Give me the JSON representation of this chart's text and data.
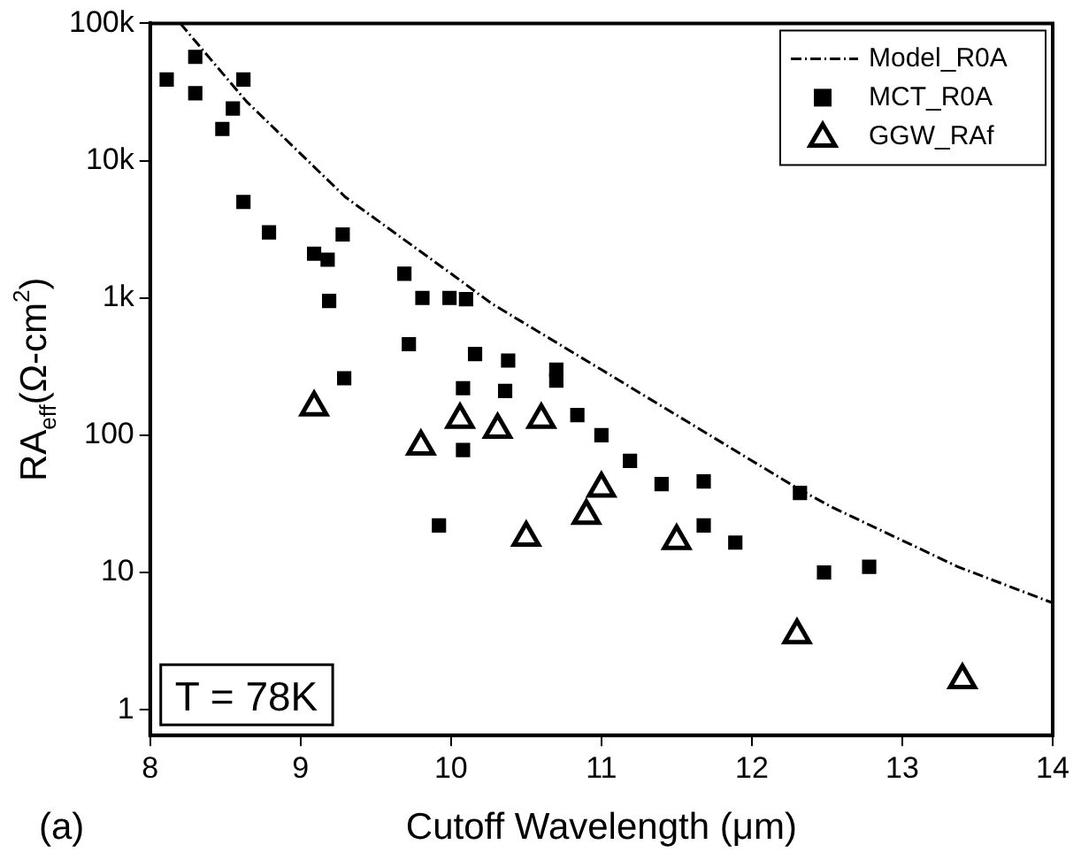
{
  "chart_data": {
    "type": "scatter",
    "xlabel": "Cutoff Wavelength (μm)",
    "ylabel": "RA$_{eff}$(Ω-cm$^{2}$)",
    "log": "y",
    "xlim": [
      8,
      14
    ],
    "xticks": [
      8,
      9,
      10,
      11,
      12,
      13,
      14
    ],
    "ylim": [
      0.65,
      100000
    ],
    "yticks": [
      {
        "value": 1,
        "label": "1"
      },
      {
        "value": 10,
        "label": "10"
      },
      {
        "value": 100,
        "label": "100"
      },
      {
        "value": 1000,
        "label": "1k"
      },
      {
        "value": 10000,
        "label": "10k"
      },
      {
        "value": 100000,
        "label": "100k"
      }
    ],
    "grid": false,
    "legend": "top right",
    "annotations": [
      "T = 78K",
      "(a)"
    ],
    "series": [
      {
        "name": "Model_R0A",
        "type": "line",
        "color": "#000000",
        "marker": "none",
        "line_style": "dashed",
        "x": [
          8.2,
          8.64,
          9.3,
          10.02,
          10.27,
          11.0,
          12.32,
          12.53,
          13.37,
          14.0
        ],
        "values": [
          100000,
          27000,
          5400,
          1450,
          910,
          300,
          40,
          30,
          11,
          6
        ]
      },
      {
        "name": "MCT_R0A",
        "color": "#000000",
        "marker": "square",
        "x": [
          8.11,
          8.3,
          8.3,
          8.62,
          8.55,
          8.48,
          8.62,
          8.79,
          9.09,
          9.18,
          9.28,
          9.19,
          9.69,
          9.81,
          9.99,
          10.1,
          9.72,
          10.16,
          9.29,
          10.08,
          10.38,
          10.36,
          10.7,
          10.7,
          10.84,
          11.0,
          11.19,
          11.4,
          11.68,
          11.68,
          11.89,
          12.32,
          10.08,
          9.92,
          12.48,
          12.78
        ],
        "values": [
          39000,
          57000,
          31000,
          39000,
          24000,
          17000,
          5000,
          3000,
          2100,
          1900,
          2900,
          950,
          1500,
          1000,
          1000,
          980,
          460,
          390,
          260,
          220,
          350,
          210,
          300,
          250,
          140,
          100,
          65,
          44,
          46,
          22,
          16.5,
          38,
          78,
          22,
          10,
          11
        ]
      },
      {
        "name": "GGW_RAf",
        "color": "#000000",
        "marker": "triangle",
        "x": [
          9.09,
          9.8,
          10.06,
          10.31,
          10.6,
          11.0,
          10.9,
          10.5,
          11.5,
          12.3,
          13.4
        ],
        "values": [
          160,
          83,
          130,
          110,
          130,
          41,
          26,
          18,
          17,
          3.5,
          1.65
        ]
      }
    ]
  }
}
